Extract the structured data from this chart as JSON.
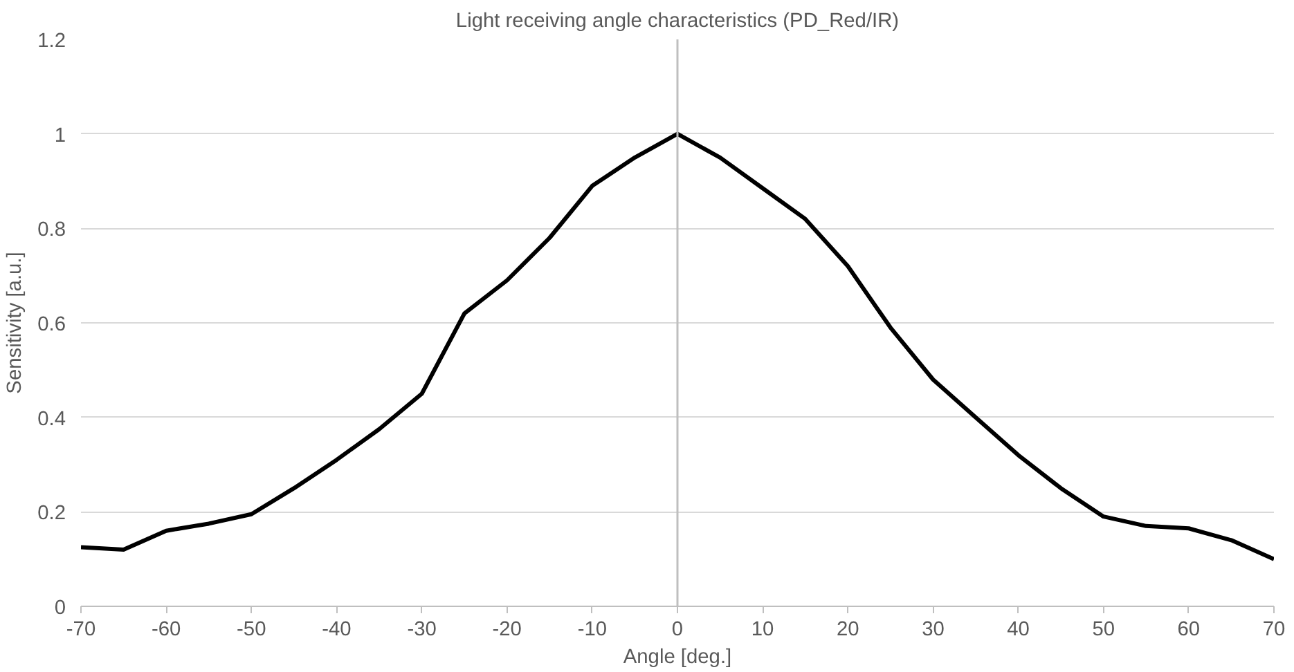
{
  "chart_data": {
    "type": "line",
    "title": "Light receiving angle characteristics (PD_Red/IR)",
    "xlabel": "Angle [deg.]",
    "ylabel": "Sensitivity [a.u.]",
    "x": [
      -70,
      -65,
      -60,
      -55,
      -50,
      -45,
      -40,
      -35,
      -30,
      -25,
      -20,
      -15,
      -10,
      -5,
      0,
      5,
      10,
      15,
      20,
      25,
      30,
      35,
      40,
      45,
      50,
      55,
      60,
      65,
      70
    ],
    "series": [
      {
        "color": "#000000",
        "values": [
          0.125,
          0.12,
          0.16,
          0.175,
          0.195,
          0.25,
          0.31,
          0.375,
          0.45,
          0.62,
          0.69,
          0.78,
          0.89,
          0.95,
          1.0,
          0.95,
          0.885,
          0.82,
          0.72,
          0.59,
          0.48,
          0.4,
          0.32,
          0.25,
          0.19,
          0.17,
          0.165,
          0.14,
          0.1
        ]
      }
    ],
    "xlim": [
      -70,
      70
    ],
    "ylim": [
      0,
      1.2
    ],
    "xticks": [
      -70,
      -60,
      -50,
      -40,
      -30,
      -20,
      -10,
      0,
      10,
      20,
      30,
      40,
      50,
      60,
      70
    ],
    "yticks": [
      0,
      0.2,
      0.4,
      0.6,
      0.8,
      1,
      1.2
    ],
    "grid": "y",
    "marker": "none",
    "line_style": "solid",
    "ref_lines": [
      {
        "axis": "x",
        "value": 0,
        "color": "#bfbfbf"
      }
    ]
  }
}
